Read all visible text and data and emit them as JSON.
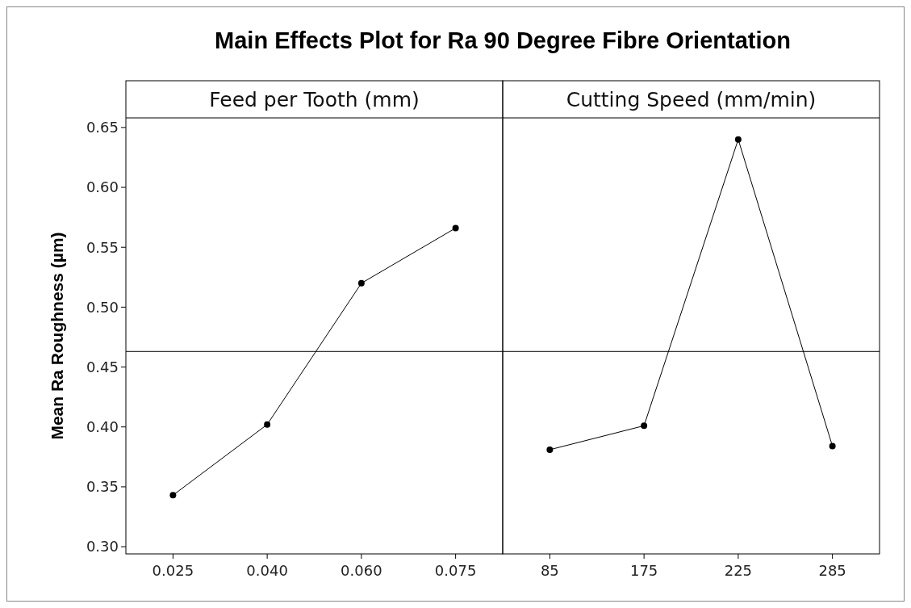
{
  "chart_data": [
    {
      "type": "line",
      "title": "Main Effects Plot for Ra 90 Degree Fibre Orientation",
      "xlabel": "Feed per Tooth (mm)",
      "ylabel": "Mean Ra Roughness (µm)",
      "categories": [
        "0.025",
        "0.040",
        "0.060",
        "0.075"
      ],
      "series": [
        {
          "color": "#000000",
          "values": [
            0.343,
            0.402,
            0.52,
            0.566
          ]
        }
      ],
      "ylim": [
        0.294,
        0.658
      ],
      "yticks": [
        {
          "value": 0.3,
          "label": "0.30"
        },
        0.35,
        {
          "value": 0.4,
          "label": "0.40"
        },
        0.45,
        {
          "value": 0.5,
          "label": "0.50"
        },
        0.55,
        {
          "value": 0.6,
          "label": "0.60"
        },
        0.65
      ],
      "ref_lines": [
        {
          "axis": "y",
          "value": 0.463,
          "color": "#000000"
        }
      ],
      "marker": "circle",
      "line_style": "solid"
    },
    {
      "type": "line",
      "xlabel": "Cutting Speed (mm/min)",
      "categories": [
        "85",
        "175",
        "225",
        "285"
      ],
      "series": [
        {
          "color": "#000000",
          "values": [
            0.381,
            0.401,
            0.64,
            0.384
          ]
        }
      ],
      "ylim": [
        0.294,
        0.658
      ],
      "tick_labels": "x",
      "ref_lines": [
        {
          "axis": "y",
          "value": 0.463,
          "color": "#000000"
        }
      ],
      "marker": "circle",
      "line_style": "solid"
    }
  ]
}
